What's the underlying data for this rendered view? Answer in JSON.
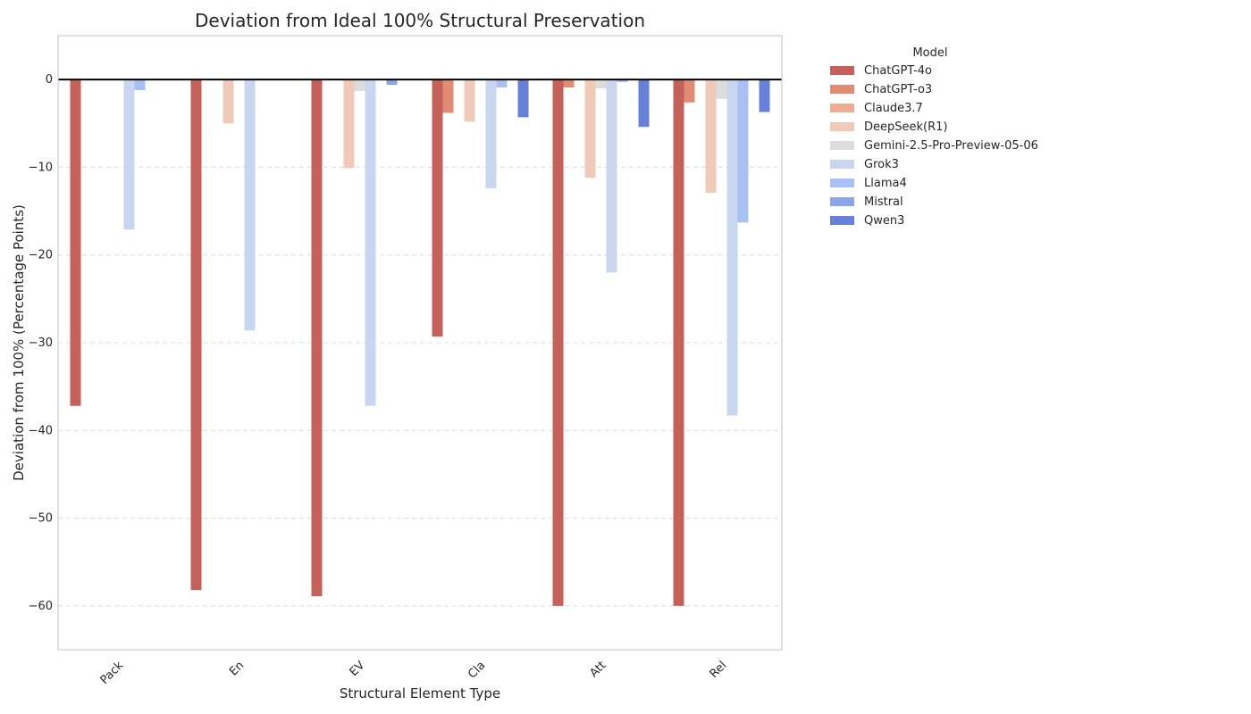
{
  "chart_data": {
    "type": "bar",
    "title": "Deviation from Ideal 100% Structural Preservation",
    "xlabel": "Structural Element Type",
    "ylabel": "Deviation from 100% (Percentage Points)",
    "ylim": [
      -65,
      5
    ],
    "yticks": [
      0,
      -10,
      -20,
      -30,
      -40,
      -50,
      -60
    ],
    "grid": true,
    "legend_title": "Model",
    "legend_position": "outside-right",
    "categories": [
      "Pack",
      "En",
      "EV",
      "Cla",
      "Att",
      "Rel"
    ],
    "series": [
      {
        "name": "ChatGPT-4o",
        "color": "#c5605a",
        "values": [
          -37.2,
          -58.2,
          -58.9,
          -29.3,
          -60.0,
          -60.0
        ]
      },
      {
        "name": "ChatGPT-o3",
        "color": "#e08c72",
        "values": [
          0,
          0,
          0,
          -3.8,
          -0.9,
          -2.6
        ]
      },
      {
        "name": "Claude3.7",
        "color": "#ecad94",
        "values": [
          0,
          0,
          0,
          0,
          0,
          0
        ]
      },
      {
        "name": "DeepSeek(R1)",
        "color": "#efcab9",
        "values": [
          0,
          -5.0,
          -10.1,
          -4.8,
          -11.2,
          -12.9
        ]
      },
      {
        "name": "Gemini-2.5-Pro-Preview-05-06",
        "color": "#dcdcdc",
        "values": [
          0,
          0,
          -1.3,
          0,
          -1.0,
          -2.2
        ]
      },
      {
        "name": "Grok3",
        "color": "#c8d6f0",
        "values": [
          -17.1,
          -28.6,
          -37.2,
          -12.4,
          -22.0,
          -38.3
        ]
      },
      {
        "name": "Llama4",
        "color": "#a9c0f5",
        "values": [
          -1.2,
          0,
          0,
          -0.9,
          -0.3,
          -16.3
        ]
      },
      {
        "name": "Mistral",
        "color": "#8ba5ea",
        "values": [
          0,
          0,
          -0.6,
          0,
          0,
          0
        ]
      },
      {
        "name": "Qwen3",
        "color": "#6881d8",
        "values": [
          0,
          0,
          0,
          -4.3,
          -5.4,
          -3.7
        ]
      }
    ]
  }
}
